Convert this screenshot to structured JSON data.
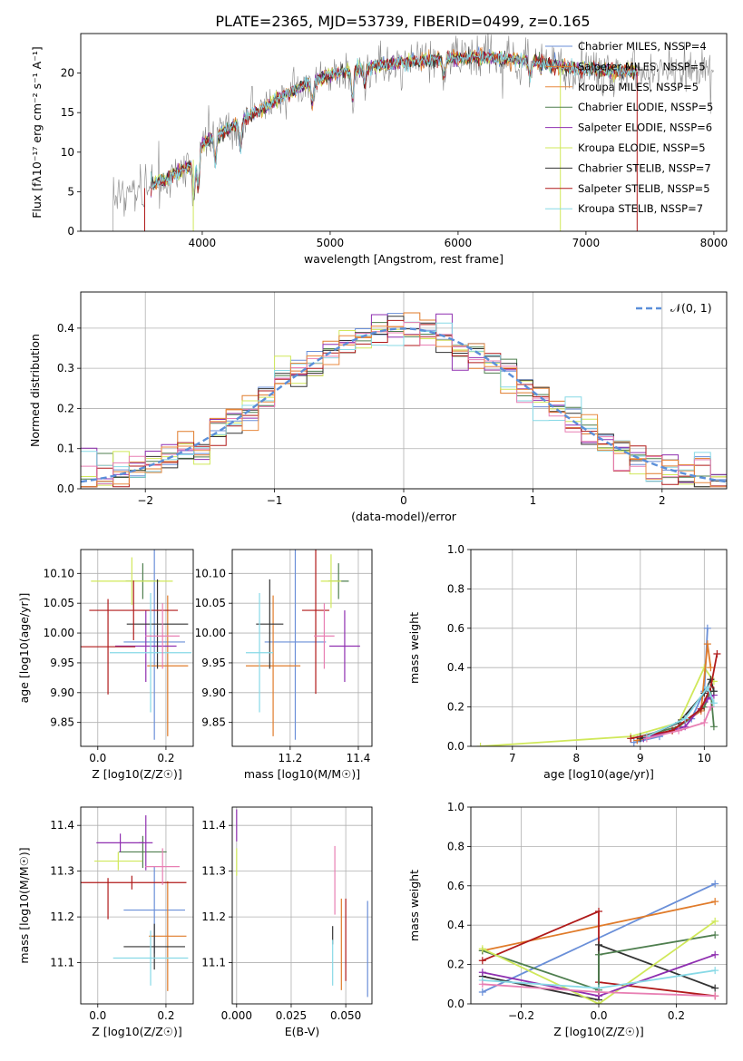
{
  "colors": [
    "#6a8fd8",
    "#e07b2a",
    "#4f7f4f",
    "#8f2fb0",
    "#d0e85a",
    "#333333",
    "#b01a1a",
    "#87d9e6",
    "#e87fb3",
    "#e8893f"
  ],
  "figure_title": "PLATE=2365, MJD=53739, FIBERID=0499, z=0.165",
  "chart_data": [
    {
      "id": "spectrum",
      "type": "line",
      "title": "PLATE=2365, MJD=53739, FIBERID=0499, z=0.165",
      "xlabel": "wavelength [Angstrom, rest frame]",
      "ylabel": "Flux [fλ10⁻¹⁷ erg cm⁻² s⁻¹ A⁻¹]",
      "xlim": [
        3050,
        8100
      ],
      "ylim": [
        0,
        25
      ],
      "xticks": [
        4000,
        5000,
        6000,
        7000,
        8000
      ],
      "yticks": [
        0,
        5,
        10,
        15,
        20
      ],
      "grid": false,
      "legend_position": "right",
      "legend": [
        "Chabrier MILES, NSSP=4",
        "Salpeter MILES, NSSP=5",
        "Kroupa MILES, NSSP=5",
        "Chabrier ELODIE, NSSP=5",
        "Salpeter ELODIE, NSSP=6",
        "Kroupa ELODIE, NSSP=5",
        "Chabrier STELIB, NSSP=7",
        "Salpeter STELIB, NSSP=5",
        "Kroupa STELIB, NSSP=7"
      ],
      "legend_colors": [
        "#6a8fd8",
        "#e07b2a",
        "#e8893f",
        "#4f7f4f",
        "#8f2fb0",
        "#d0e85a",
        "#333333",
        "#b01a1a",
        "#87d9e6"
      ],
      "continuum": {
        "x": [
          3300,
          3500,
          3700,
          3900,
          4000,
          4200,
          4400,
          4600,
          4800,
          5000,
          5200,
          5400,
          5600,
          5800,
          6000,
          6200,
          6400,
          6600,
          6800,
          7000,
          7200,
          7400
        ],
        "y": [
          4.8,
          5.1,
          6.5,
          8.2,
          11.0,
          13.0,
          14.8,
          16.8,
          18.5,
          19.8,
          20.5,
          21.0,
          21.4,
          21.7,
          21.9,
          22.0,
          21.8,
          21.5,
          20.8,
          20.5,
          20.3,
          20.2
        ]
      },
      "model_range": [
        3600,
        7400
      ]
    },
    {
      "id": "residuals",
      "type": "line",
      "xlabel": "(data-model)/error",
      "ylabel": "Normed distribution",
      "xlim": [
        -2.5,
        2.5
      ],
      "ylim": [
        0,
        0.49
      ],
      "xticks": [
        -2,
        -1,
        0,
        1,
        2
      ],
      "yticks": [
        0.0,
        0.1,
        0.2,
        0.3,
        0.4
      ],
      "grid": true,
      "legend_position": "top-right",
      "legend": [
        "𝒩(0, 1)"
      ],
      "gaussian": {
        "mu": 0,
        "sigma": 1
      }
    },
    {
      "id": "age-vs-Z",
      "type": "scatter",
      "xlabel": "Z [log10(Z/Z☉)]",
      "ylabel": "age  [log10(age/yr)]",
      "xlim": [
        -0.05,
        0.28
      ],
      "ylim": [
        9.81,
        10.14
      ],
      "xticks": [
        0.0,
        0.2
      ],
      "yticks": [
        9.85,
        9.9,
        9.95,
        10.0,
        10.05,
        10.1
      ],
      "grid": true,
      "points": [
        {
          "x": 0.166,
          "y": 9.985,
          "xerr": 0.09,
          "yerr": 0.164,
          "color": "#6a8fd8"
        },
        {
          "x": 0.205,
          "y": 9.945,
          "xerr": 0.06,
          "yerr": 0.118,
          "color": "#e07b2a"
        },
        {
          "x": 0.132,
          "y": 10.087,
          "xerr": 0.05,
          "yerr": 0.03,
          "color": "#4f7f4f"
        },
        {
          "x": 0.141,
          "y": 9.978,
          "xerr": 0.09,
          "yerr": 0.06,
          "color": "#8f2fb0"
        },
        {
          "x": 0.1,
          "y": 10.087,
          "xerr": 0.12,
          "yerr": 0.04,
          "color": "#d0e85a"
        },
        {
          "x": 0.175,
          "y": 10.015,
          "xerr": 0.09,
          "yerr": 0.075,
          "color": "#333333"
        },
        {
          "x": 0.105,
          "y": 10.038,
          "xerr": 0.13,
          "yerr": 0.05,
          "color": "#b01a1a"
        },
        {
          "x": 0.03,
          "y": 9.977,
          "xerr": 0.08,
          "yerr": 0.08,
          "color": "#b01a1a"
        },
        {
          "x": 0.155,
          "y": 9.967,
          "xerr": 0.12,
          "yerr": 0.1,
          "color": "#87d9e6"
        },
        {
          "x": 0.19,
          "y": 9.995,
          "xerr": 0.05,
          "yerr": 0.055,
          "color": "#e87fb3"
        }
      ]
    },
    {
      "id": "age-vs-mass",
      "type": "scatter",
      "xlabel": "mass [log10(M/M☉)]",
      "ylabel": "",
      "xlim": [
        11.03,
        11.44
      ],
      "ylim": [
        9.81,
        10.14
      ],
      "xticks": [
        11.2,
        11.4
      ],
      "yticks": [
        9.85,
        9.9,
        9.95,
        10.0,
        10.05,
        10.1
      ],
      "grid": true,
      "points": [
        {
          "x": 11.215,
          "y": 9.985,
          "xerr": 0.09,
          "yerr": 0.164,
          "color": "#6a8fd8"
        },
        {
          "x": 11.15,
          "y": 9.945,
          "xerr": 0.08,
          "yerr": 0.118,
          "color": "#e07b2a"
        },
        {
          "x": 11.342,
          "y": 10.087,
          "xerr": 0.03,
          "yerr": 0.03,
          "color": "#4f7f4f"
        },
        {
          "x": 11.36,
          "y": 9.978,
          "xerr": 0.045,
          "yerr": 0.06,
          "color": "#8f2fb0"
        },
        {
          "x": 11.32,
          "y": 10.087,
          "xerr": 0.03,
          "yerr": 0.045,
          "color": "#d0e85a"
        },
        {
          "x": 11.14,
          "y": 10.015,
          "xerr": 0.04,
          "yerr": 0.075,
          "color": "#333333"
        },
        {
          "x": 11.275,
          "y": 10.038,
          "xerr": 0.04,
          "yerr": 0.14,
          "color": "#b01a1a"
        },
        {
          "x": 11.11,
          "y": 9.967,
          "xerr": 0.04,
          "yerr": 0.1,
          "color": "#87d9e6"
        },
        {
          "x": 11.3,
          "y": 9.995,
          "xerr": 0.03,
          "yerr": 0.055,
          "color": "#e87fb3"
        }
      ]
    },
    {
      "id": "weight-vs-age",
      "type": "line",
      "xlabel": "age  [log10(age/yr)]",
      "ylabel": "mass weight",
      "xlim": [
        6.35,
        10.35
      ],
      "ylim": [
        0,
        1
      ],
      "xticks": [
        7,
        8,
        9,
        10
      ],
      "yticks": [
        0.0,
        0.2,
        0.4,
        0.6,
        0.8,
        1.0
      ],
      "grid": true,
      "series": [
        {
          "color": "#d0e85a",
          "x": [
            6.5,
            8.85,
            9.6,
            10.0,
            10.15
          ],
          "y": [
            0.0,
            0.05,
            0.12,
            0.4,
            0.33
          ]
        },
        {
          "color": "#6a8fd8",
          "x": [
            8.9,
            9.3,
            9.8,
            10.0,
            10.05
          ],
          "y": [
            0.02,
            0.05,
            0.14,
            0.28,
            0.6
          ]
        },
        {
          "color": "#e07b2a",
          "x": [
            8.95,
            9.5,
            9.95,
            10.05,
            10.1
          ],
          "y": [
            0.03,
            0.08,
            0.18,
            0.52,
            0.4
          ]
        },
        {
          "color": "#4f7f4f",
          "x": [
            9.0,
            9.6,
            10.0,
            10.1,
            10.15
          ],
          "y": [
            0.05,
            0.1,
            0.2,
            0.28,
            0.1
          ]
        },
        {
          "color": "#8f2fb0",
          "x": [
            9.05,
            9.7,
            10.05,
            10.15
          ],
          "y": [
            0.04,
            0.1,
            0.24,
            0.26
          ]
        },
        {
          "color": "#333333",
          "x": [
            9.0,
            9.6,
            10.0,
            10.1,
            10.15
          ],
          "y": [
            0.04,
            0.12,
            0.27,
            0.34,
            0.28
          ]
        },
        {
          "color": "#b01a1a",
          "x": [
            8.85,
            9.5,
            9.95,
            10.1,
            10.2
          ],
          "y": [
            0.04,
            0.08,
            0.19,
            0.3,
            0.47
          ]
        },
        {
          "color": "#87d9e6",
          "x": [
            9.1,
            9.7,
            10.05,
            10.15
          ],
          "y": [
            0.05,
            0.14,
            0.3,
            0.22
          ]
        },
        {
          "color": "#e87fb3",
          "x": [
            9.1,
            9.6,
            10.0,
            10.1
          ],
          "y": [
            0.04,
            0.08,
            0.12,
            0.2
          ]
        }
      ]
    },
    {
      "id": "mass-vs-Z",
      "type": "scatter",
      "xlabel": "Z [log10(Z/Z☉)]",
      "ylabel": "mass [log10(M/M☉)]",
      "xlim": [
        -0.05,
        0.28
      ],
      "ylim": [
        11.01,
        11.44
      ],
      "xticks": [
        0.0,
        0.2
      ],
      "yticks": [
        11.1,
        11.2,
        11.3,
        11.4
      ],
      "grid": true,
      "points": [
        {
          "x": 0.166,
          "y": 11.215,
          "xerr": 0.09,
          "yerr": 0.095,
          "color": "#6a8fd8"
        },
        {
          "x": 0.205,
          "y": 11.158,
          "xerr": 0.055,
          "yerr": 0.12,
          "color": "#e07b2a"
        },
        {
          "x": 0.132,
          "y": 11.342,
          "xerr": 0.07,
          "yerr": 0.035,
          "color": "#4f7f4f"
        },
        {
          "x": 0.066,
          "y": 11.362,
          "xerr": 0.07,
          "yerr": 0.02,
          "color": "#8f2fb0"
        },
        {
          "x": 0.141,
          "y": 11.362,
          "xerr": 0.02,
          "yerr": 0.06,
          "color": "#8f2fb0"
        },
        {
          "x": 0.06,
          "y": 11.322,
          "xerr": 0.07,
          "yerr": 0.02,
          "color": "#d0e85a"
        },
        {
          "x": 0.166,
          "y": 11.135,
          "xerr": 0.09,
          "yerr": 0.05,
          "color": "#333333"
        },
        {
          "x": 0.1,
          "y": 11.275,
          "xerr": 0.16,
          "yerr": 0.015,
          "color": "#b01a1a"
        },
        {
          "x": 0.03,
          "y": 11.24,
          "xerr": 0.0,
          "yerr": 0.045,
          "color": "#b01a1a"
        },
        {
          "x": 0.155,
          "y": 11.11,
          "xerr": 0.11,
          "yerr": 0.06,
          "color": "#87d9e6"
        },
        {
          "x": 0.19,
          "y": 11.31,
          "xerr": 0.05,
          "yerr": 0.04,
          "color": "#e87fb3"
        }
      ]
    },
    {
      "id": "mass-vs-EBV",
      "type": "scatter",
      "xlabel": "E(B-V)",
      "ylabel": "",
      "xlim": [
        -0.002,
        0.062
      ],
      "ylim": [
        11.01,
        11.44
      ],
      "xticks": [
        0.0,
        0.025,
        0.05
      ],
      "xtick_labels": [
        "0.000",
        "0.025",
        "0.050"
      ],
      "yticks": [
        11.1,
        11.2,
        11.3,
        11.4
      ],
      "grid": true,
      "points": [
        {
          "x": 0.06,
          "y": 11.13,
          "xerr": 0,
          "yerr": 0.105,
          "color": "#6a8fd8"
        },
        {
          "x": 0.048,
          "y": 11.14,
          "xerr": 0,
          "yerr": 0.1,
          "color": "#e07b2a"
        },
        {
          "x": 0.0,
          "y": 11.4,
          "xerr": 0,
          "yerr": 0.035,
          "color": "#8f2fb0"
        },
        {
          "x": 0.0,
          "y": 11.32,
          "xerr": 0,
          "yerr": 0.03,
          "color": "#d0e85a"
        },
        {
          "x": 0.044,
          "y": 11.16,
          "xerr": 0,
          "yerr": 0.02,
          "color": "#333333"
        },
        {
          "x": 0.05,
          "y": 11.15,
          "xerr": 0,
          "yerr": 0.09,
          "color": "#b01a1a"
        },
        {
          "x": 0.044,
          "y": 11.1,
          "xerr": 0,
          "yerr": 0.05,
          "color": "#87d9e6"
        },
        {
          "x": 0.045,
          "y": 11.28,
          "xerr": 0,
          "yerr": 0.075,
          "color": "#e87fb3"
        }
      ]
    },
    {
      "id": "weight-vs-Z",
      "type": "line",
      "xlabel": "Z [log10(Z/Z☉)]",
      "ylabel": "mass weight",
      "xlim": [
        -0.33,
        0.33
      ],
      "ylim": [
        0,
        1
      ],
      "xticks": [
        -0.2,
        0.0,
        0.2
      ],
      "yticks": [
        0.0,
        0.2,
        0.4,
        0.6,
        0.8,
        1.0
      ],
      "grid": true,
      "series": [
        {
          "color": "#6a8fd8",
          "x": [
            -0.3,
            0.3
          ],
          "y": [
            0.06,
            0.61
          ]
        },
        {
          "color": "#e07b2a",
          "x": [
            -0.3,
            0.3
          ],
          "y": [
            0.27,
            0.52
          ]
        },
        {
          "color": "#b01a1a",
          "x": [
            -0.3,
            0.0,
            0.0,
            0.3
          ],
          "y": [
            0.22,
            0.47,
            0.11,
            0.04
          ]
        },
        {
          "color": "#333333",
          "x": [
            -0.3,
            0.0,
            0.0,
            0.3
          ],
          "y": [
            0.14,
            0.02,
            0.3,
            0.08
          ]
        },
        {
          "color": "#4f7f4f",
          "x": [
            -0.3,
            0.0,
            0.0,
            0.3
          ],
          "y": [
            0.27,
            0.07,
            0.25,
            0.35
          ]
        },
        {
          "color": "#d0e85a",
          "x": [
            -0.3,
            0.0,
            0.3
          ],
          "y": [
            0.28,
            0.0,
            0.42
          ]
        },
        {
          "color": "#8f2fb0",
          "x": [
            -0.3,
            0.0,
            0.3
          ],
          "y": [
            0.16,
            0.04,
            0.25
          ]
        },
        {
          "color": "#87d9e6",
          "x": [
            -0.3,
            0.0,
            0.3
          ],
          "y": [
            0.12,
            0.08,
            0.17
          ]
        },
        {
          "color": "#e87fb3",
          "x": [
            -0.3,
            0.0,
            0.3
          ],
          "y": [
            0.1,
            0.06,
            0.04
          ]
        }
      ]
    }
  ]
}
